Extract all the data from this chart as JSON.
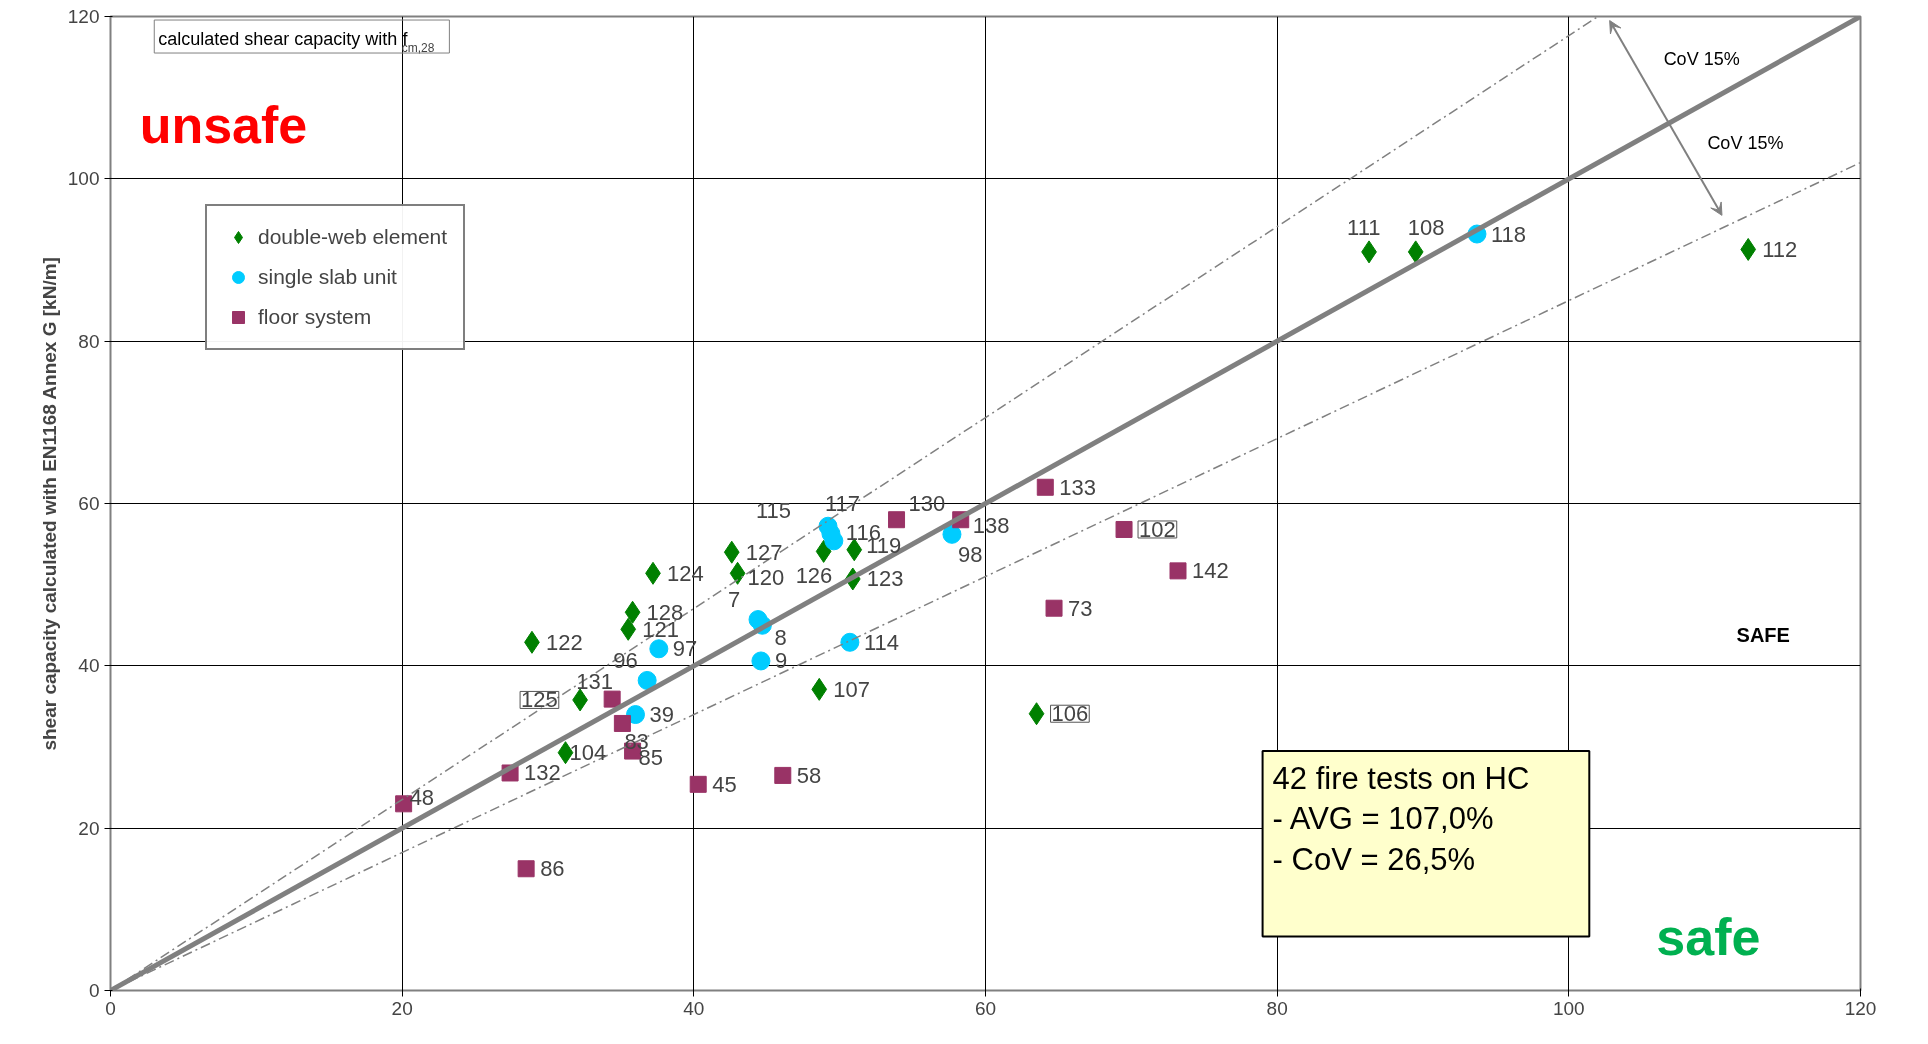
{
  "chart_data": {
    "type": "scatter",
    "ylabel": "shear capacity calculated with EN1168 Annex G [kN/m]",
    "xlim": [
      0,
      120
    ],
    "ylim": [
      0,
      120
    ],
    "xticks": [
      0,
      20,
      40,
      60,
      80,
      100,
      120
    ],
    "yticks": [
      0,
      20,
      40,
      60,
      80,
      100,
      120
    ],
    "grid": true,
    "legend": "top left",
    "series": [
      {
        "name": "double-web element",
        "color": "#008000",
        "marker": "diamond",
        "x": [
          86.3,
          89.5,
          112.3,
          42.6,
          43.0,
          37.2,
          48.9,
          51.0,
          50.9,
          35.8,
          35.5,
          28.9,
          32.2,
          31.2,
          48.6,
          63.5
        ],
        "values": [
          91.0,
          91.0,
          91.3,
          54.0,
          51.4,
          51.4,
          54.1,
          54.3,
          50.7,
          46.6,
          44.5,
          42.9,
          35.8,
          29.3,
          37.1,
          34.1
        ]
      },
      {
        "name": "single slab unit",
        "color": "#00ccff",
        "marker": "circle",
        "x": [
          93.7,
          49.2,
          49.4,
          49.6,
          57.7,
          44.4,
          44.7,
          44.6,
          37.6,
          36.8,
          36.0,
          50.7
        ],
        "values": [
          93.2,
          57.2,
          56.3,
          55.4,
          56.2,
          45.7,
          45.0,
          40.6,
          42.1,
          38.2,
          34.0,
          42.9
        ]
      },
      {
        "name": "floor system",
        "color": "#993366",
        "marker": "square",
        "x": [
          53.9,
          58.3,
          64.1,
          69.5,
          73.2,
          64.7,
          34.4,
          35.1,
          35.8,
          40.3,
          46.1,
          27.4,
          20.1,
          28.5
        ],
        "values": [
          58.0,
          58.0,
          62.0,
          56.8,
          51.7,
          47.1,
          35.9,
          32.9,
          29.5,
          25.4,
          26.5,
          26.8,
          23.0,
          15.0
        ]
      },
      {
        "type": "line",
        "color": "#808080",
        "line_style": "solid",
        "x": [
          0,
          120
        ],
        "values": [
          0,
          120
        ]
      },
      {
        "type": "line",
        "color": "#808080",
        "line_style": "dashed",
        "x": [
          0,
          102
        ],
        "values": [
          0,
          120
        ]
      },
      {
        "type": "line",
        "color": "#808080",
        "line_style": "dashed",
        "x": [
          0,
          120
        ],
        "values": [
          0,
          102
        ]
      }
    ],
    "annotations": [
      "calculated shear capacity with f$_{cm,28}$",
      "unsafe",
      "safe",
      "SAFE",
      "CoV  15%",
      "CoV  15%",
      "42 fire tests on HC\n- AVG = 107,0%\n- CoV = 26,5%",
      {
        "text": "111",
        "x": 86.3,
        "y": 91.0
      },
      {
        "text": "108",
        "x": 89.5,
        "y": 91.0
      },
      {
        "text": "112",
        "x": 112.3,
        "y": 91.3
      },
      {
        "text": "127",
        "x": 42.6,
        "y": 54.0
      },
      {
        "text": "120",
        "x": 43.0,
        "y": 51.4
      },
      {
        "text": "124",
        "x": 37.2,
        "y": 51.4
      },
      {
        "text": "126",
        "x": 48.9,
        "y": 54.1
      },
      {
        "text": "119",
        "x": 51.0,
        "y": 54.3
      },
      {
        "text": "123",
        "x": 50.9,
        "y": 50.7
      },
      {
        "text": "128",
        "x": 35.8,
        "y": 46.6
      },
      {
        "text": "121",
        "x": 35.5,
        "y": 44.5
      },
      {
        "text": "122",
        "x": 28.9,
        "y": 42.9
      },
      {
        "text": "125",
        "x": 32.2,
        "y": 35.8
      },
      {
        "text": "104",
        "x": 31.2,
        "y": 29.3
      },
      {
        "text": "107",
        "x": 48.6,
        "y": 37.1
      },
      {
        "text": "106",
        "x": 63.5,
        "y": 34.1
      },
      {
        "text": "118",
        "x": 93.7,
        "y": 93.2
      },
      {
        "text": "115",
        "x": 49.2,
        "y": 57.2
      },
      {
        "text": "117",
        "x": 49.4,
        "y": 56.3
      },
      {
        "text": "116",
        "x": 49.6,
        "y": 55.4
      },
      {
        "text": "98",
        "x": 57.7,
        "y": 56.2
      },
      {
        "text": "7",
        "x": 44.4,
        "y": 45.7
      },
      {
        "text": "8",
        "x": 44.7,
        "y": 45.0
      },
      {
        "text": "9",
        "x": 44.6,
        "y": 40.6
      },
      {
        "text": "97",
        "x": 37.6,
        "y": 42.1
      },
      {
        "text": "96",
        "x": 36.8,
        "y": 38.2
      },
      {
        "text": "39",
        "x": 36.0,
        "y": 34.0
      },
      {
        "text": "114",
        "x": 50.7,
        "y": 42.9
      },
      {
        "text": "130",
        "x": 53.9,
        "y": 58.0
      },
      {
        "text": "138",
        "x": 58.3,
        "y": 58.0
      },
      {
        "text": "133",
        "x": 64.1,
        "y": 62.0
      },
      {
        "text": "102",
        "x": 69.5,
        "y": 56.8
      },
      {
        "text": "142",
        "x": 73.2,
        "y": 51.7
      },
      {
        "text": "73",
        "x": 64.7,
        "y": 47.1
      },
      {
        "text": "131",
        "x": 34.4,
        "y": 35.9
      },
      {
        "text": "83",
        "x": 35.1,
        "y": 32.9
      },
      {
        "text": "85",
        "x": 35.8,
        "y": 29.5
      },
      {
        "text": "45",
        "x": 40.3,
        "y": 25.4
      },
      {
        "text": "58",
        "x": 46.1,
        "y": 26.5
      },
      {
        "text": "132",
        "x": 27.4,
        "y": 26.8
      },
      {
        "text": "48",
        "x": 20.1,
        "y": 23.0
      },
      {
        "text": "86",
        "x": 28.5,
        "y": 15.0
      }
    ]
  }
}
